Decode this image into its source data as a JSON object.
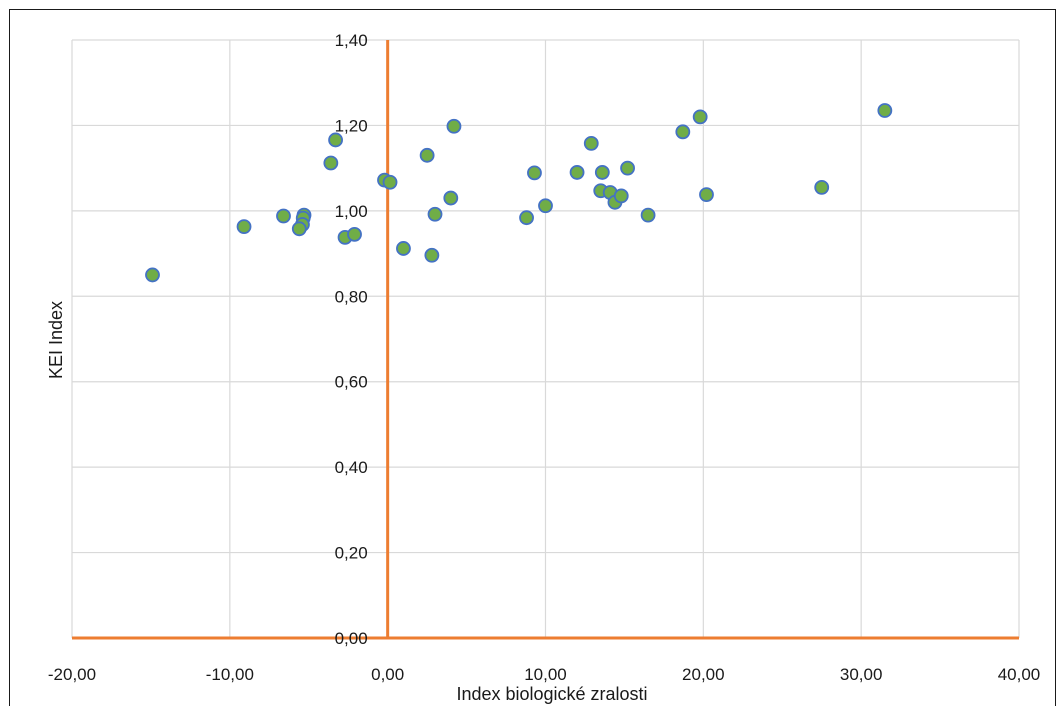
{
  "chart_data": {
    "type": "scatter",
    "title": "",
    "xlabel": "Index biologické zralosti",
    "ylabel": "KEI Index",
    "xlim": [
      -20,
      40
    ],
    "ylim": [
      0,
      1.4
    ],
    "x_ticks": [
      "-20,00",
      "-10,00",
      "0,00",
      "10,00",
      "20,00",
      "30,00",
      "40,00"
    ],
    "y_ticks": [
      "0,00",
      "0,20",
      "0,40",
      "0,60",
      "0,80",
      "1,00",
      "1,20",
      "1,40"
    ],
    "grid": true,
    "legend": "none",
    "colors": {
      "marker_fill": "#70ad47",
      "marker_edge": "#4472c4",
      "axis_line": "#ed7d31",
      "grid": "#d9d9d9"
    },
    "series": [
      {
        "points": [
          [
            -14.9,
            0.85
          ],
          [
            -9.1,
            0.963
          ],
          [
            -6.6,
            0.988
          ],
          [
            -5.3,
            0.99
          ],
          [
            -5.35,
            0.983
          ],
          [
            -5.4,
            0.968
          ],
          [
            -5.6,
            0.958
          ],
          [
            -3.3,
            1.166
          ],
          [
            -3.6,
            1.112
          ],
          [
            -2.7,
            0.938
          ],
          [
            -2.1,
            0.945
          ],
          [
            -0.2,
            1.072
          ],
          [
            0.15,
            1.067
          ],
          [
            1.0,
            0.912
          ],
          [
            2.5,
            1.13
          ],
          [
            2.8,
            0.896
          ],
          [
            3.0,
            0.992
          ],
          [
            4.0,
            1.03
          ],
          [
            4.2,
            1.198
          ],
          [
            8.8,
            0.984
          ],
          [
            9.3,
            1.089
          ],
          [
            10.0,
            1.012
          ],
          [
            12.0,
            1.09
          ],
          [
            12.9,
            1.158
          ],
          [
            13.5,
            1.047
          ],
          [
            13.6,
            1.09
          ],
          [
            14.1,
            1.043
          ],
          [
            14.4,
            1.02
          ],
          [
            14.8,
            1.035
          ],
          [
            15.2,
            1.1
          ],
          [
            16.5,
            0.99
          ],
          [
            18.7,
            1.185
          ],
          [
            19.8,
            1.22
          ],
          [
            20.2,
            1.038
          ],
          [
            27.5,
            1.055
          ],
          [
            31.5,
            1.235
          ]
        ]
      }
    ]
  }
}
